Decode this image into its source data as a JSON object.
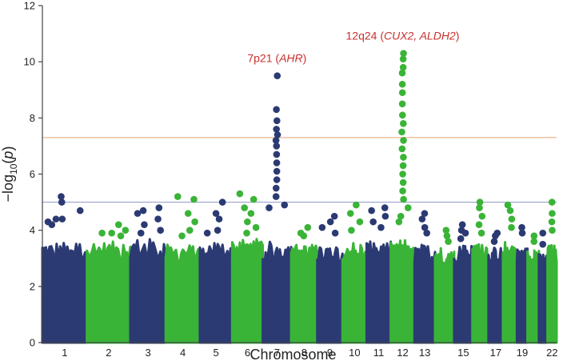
{
  "chart_data": {
    "type": "scatter",
    "subtype": "manhattan",
    "title": "",
    "xlabel": "Chromosome",
    "ylabel": {
      "prefix": "−log",
      "sub": "10",
      "open": "(",
      "var": "p",
      "close": ")"
    },
    "ylim": [
      0,
      12
    ],
    "yticks": [
      0,
      2,
      4,
      6,
      8,
      10,
      12
    ],
    "colors": {
      "odd": "#2b3a73",
      "even": "#3ab437",
      "genome_wide_line": "#f0b48c",
      "suggestive_line": "#9aa2cc",
      "annotation": "#c8302c"
    },
    "thresholds": [
      {
        "name": "genome-wide",
        "value": 7.3
      },
      {
        "name": "suggestive",
        "value": 5.0
      }
    ],
    "chromosomes": [
      {
        "chr": "1",
        "label": "1",
        "rel_size": 249,
        "max_bulk": 3.6,
        "top_points": [
          5.2,
          5.0,
          4.7,
          4.4,
          4.3,
          4.4,
          4.2
        ]
      },
      {
        "chr": "2",
        "label": "2",
        "rel_size": 243,
        "max_bulk": 3.6,
        "top_points": [
          4.2,
          4.0,
          3.9,
          3.8,
          3.9
        ]
      },
      {
        "chr": "3",
        "label": "3",
        "rel_size": 198,
        "max_bulk": 3.7,
        "top_points": [
          4.8,
          4.7,
          4.6,
          4.4,
          4.2,
          4.0,
          3.9
        ]
      },
      {
        "chr": "4",
        "label": "4",
        "rel_size": 191,
        "max_bulk": 3.5,
        "top_points": [
          5.2,
          5.1,
          4.6,
          4.3,
          4.0,
          3.8
        ]
      },
      {
        "chr": "5",
        "label": "5",
        "rel_size": 181,
        "max_bulk": 3.6,
        "top_points": [
          5.0,
          4.6,
          4.4,
          4.0,
          3.9
        ]
      },
      {
        "chr": "6",
        "label": "6",
        "rel_size": 171,
        "max_bulk": 3.7,
        "top_points": [
          5.3,
          5.1,
          4.8,
          4.6,
          4.3,
          4.1,
          3.9
        ]
      },
      {
        "chr": "7",
        "label": "7",
        "rel_size": 159,
        "max_bulk": 3.6,
        "top_points": [
          9.5,
          8.3,
          7.9,
          7.6,
          7.4,
          7.2,
          7.0,
          6.7,
          6.4,
          6.1,
          5.8,
          5.5,
          5.2,
          4.9,
          4.8
        ]
      },
      {
        "chr": "8",
        "label": "8",
        "rel_size": 146,
        "max_bulk": 3.5,
        "top_points": [
          4.1,
          3.9,
          3.8
        ]
      },
      {
        "chr": "9",
        "label": "9",
        "rel_size": 141,
        "max_bulk": 3.5,
        "top_points": [
          4.5,
          4.3,
          4.1,
          3.9
        ]
      },
      {
        "chr": "10",
        "label": "10",
        "rel_size": 135,
        "max_bulk": 3.6,
        "top_points": [
          4.9,
          4.6,
          4.3,
          4.0
        ]
      },
      {
        "chr": "11",
        "label": "11",
        "rel_size": 135,
        "max_bulk": 3.6,
        "top_points": [
          4.8,
          4.7,
          4.5,
          4.3,
          4.1
        ]
      },
      {
        "chr": "12",
        "label": "12",
        "rel_size": 133,
        "max_bulk": 3.7,
        "top_points": [
          10.3,
          10.1,
          9.8,
          9.6,
          9.2,
          8.9,
          8.5,
          8.1,
          7.8,
          7.5,
          7.2,
          6.9,
          6.6,
          6.3,
          6.0,
          5.7,
          5.4,
          5.1,
          4.8,
          4.5,
          4.3
        ]
      },
      {
        "chr": "13",
        "label": "13",
        "rel_size": 115,
        "max_bulk": 3.5,
        "top_points": [
          4.6,
          4.4,
          4.1,
          3.9
        ]
      },
      {
        "chr": "14",
        "label": "",
        "rel_size": 107,
        "max_bulk": 3.4,
        "top_points": [
          4.0,
          3.8,
          3.6
        ]
      },
      {
        "chr": "15",
        "label": "15",
        "rel_size": 102,
        "max_bulk": 3.5,
        "top_points": [
          4.2,
          4.0,
          3.9,
          3.7
        ]
      },
      {
        "chr": "16",
        "label": "",
        "rel_size": 90,
        "max_bulk": 3.6,
        "top_points": [
          5.0,
          4.8,
          4.5,
          4.2,
          3.9
        ]
      },
      {
        "chr": "17",
        "label": "17",
        "rel_size": 81,
        "max_bulk": 3.4,
        "top_points": [
          3.9,
          3.8,
          3.6
        ]
      },
      {
        "chr": "18",
        "label": "",
        "rel_size": 78,
        "max_bulk": 3.6,
        "top_points": [
          4.9,
          4.7,
          4.4,
          4.1
        ]
      },
      {
        "chr": "19",
        "label": "19",
        "rel_size": 59,
        "max_bulk": 3.4,
        "top_points": [
          4.1,
          3.9
        ]
      },
      {
        "chr": "20",
        "label": "",
        "rel_size": 64,
        "max_bulk": 3.3,
        "top_points": [
          3.8,
          3.6
        ]
      },
      {
        "chr": "21",
        "label": "",
        "rel_size": 48,
        "max_bulk": 3.2,
        "top_points": [
          3.9,
          3.5
        ]
      },
      {
        "chr": "22",
        "label": "22",
        "rel_size": 51,
        "max_bulk": 3.5,
        "top_points": [
          5.0,
          4.6,
          4.3,
          4.0
        ]
      }
    ],
    "annotations": [
      {
        "chr": "7",
        "value": 9.5,
        "parts": [
          {
            "text": "7p21 (",
            "italic": false
          },
          {
            "text": "AHR",
            "italic": true
          },
          {
            "text": ")",
            "italic": false
          }
        ]
      },
      {
        "chr": "12",
        "value": 10.3,
        "parts": [
          {
            "text": "12q24 (",
            "italic": false
          },
          {
            "text": "CUX2, ALDH2",
            "italic": true
          },
          {
            "text": ")",
            "italic": false
          }
        ]
      }
    ]
  }
}
